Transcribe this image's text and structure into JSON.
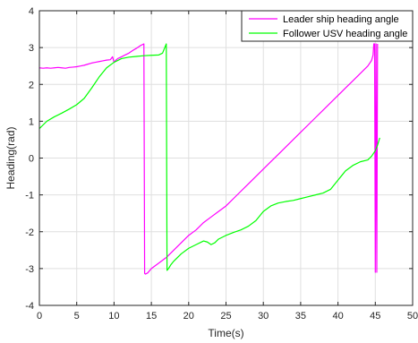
{
  "chart_data": {
    "type": "line",
    "title": "",
    "xlabel": "Time(s)",
    "ylabel": "Heading(rad)",
    "xlim": [
      0,
      50
    ],
    "ylim": [
      -4,
      4
    ],
    "xticks": [
      0,
      5,
      10,
      15,
      20,
      25,
      30,
      35,
      40,
      45,
      50
    ],
    "yticks": [
      -4,
      -3,
      -2,
      -1,
      0,
      1,
      2,
      3,
      4
    ],
    "grid": true,
    "legend_position": "top-right",
    "series": [
      {
        "name": "Leader ship heading angle",
        "color": "#ff00ff",
        "x": [
          0,
          0.5,
          1,
          1.5,
          2,
          2.5,
          3,
          3.5,
          4,
          4.5,
          5,
          5.5,
          6,
          6.5,
          7,
          7.5,
          8,
          8.5,
          9,
          9.5,
          9.8,
          10.0,
          10.2,
          10.5,
          11,
          11.5,
          12,
          12.5,
          13,
          13.5,
          14.0,
          14.1,
          14.2,
          14.5,
          15,
          16,
          17,
          18,
          19,
          20,
          21,
          22,
          23,
          24,
          25,
          26,
          27,
          28,
          29,
          30,
          31,
          32,
          33,
          34,
          35,
          36,
          37,
          38,
          39,
          40,
          41,
          42,
          43,
          44,
          44.5,
          44.7,
          44.8,
          44.9,
          45.0,
          45.1,
          45.2,
          45.3
        ],
        "y": [
          2.45,
          2.44,
          2.45,
          2.44,
          2.45,
          2.46,
          2.45,
          2.44,
          2.46,
          2.47,
          2.48,
          2.5,
          2.52,
          2.55,
          2.58,
          2.6,
          2.62,
          2.64,
          2.66,
          2.67,
          2.75,
          2.6,
          2.65,
          2.7,
          2.75,
          2.8,
          2.85,
          2.92,
          2.98,
          3.05,
          3.1,
          -3.13,
          -3.15,
          -3.12,
          -3.0,
          -2.85,
          -2.7,
          -2.5,
          -2.3,
          -2.1,
          -1.95,
          -1.75,
          -1.6,
          -1.45,
          -1.3,
          -1.1,
          -0.9,
          -0.7,
          -0.5,
          -0.3,
          -0.1,
          0.1,
          0.3,
          0.5,
          0.7,
          0.9,
          1.1,
          1.3,
          1.5,
          1.7,
          1.9,
          2.1,
          2.3,
          2.5,
          2.65,
          2.8,
          3.1,
          3.1,
          -3.1,
          3.1,
          -3.1,
          3.1
        ]
      },
      {
        "name": "Follower USV heading angle",
        "color": "#00ff00",
        "x": [
          0,
          0.5,
          1,
          2,
          3,
          4,
          5,
          6,
          7,
          8,
          9,
          10,
          11,
          12,
          13,
          14,
          15,
          16,
          16.5,
          17.0,
          17.1,
          17.3,
          17.6,
          18,
          19,
          20,
          21,
          22,
          22.5,
          23,
          23.5,
          24,
          25,
          26,
          27,
          28,
          29,
          30,
          31,
          32,
          33,
          34,
          35,
          36,
          37,
          38,
          39,
          40,
          41,
          42,
          43,
          44,
          44.5,
          45,
          45.3,
          45.6
        ],
        "y": [
          0.8,
          0.9,
          1.0,
          1.12,
          1.22,
          1.33,
          1.45,
          1.62,
          1.9,
          2.2,
          2.45,
          2.6,
          2.7,
          2.74,
          2.76,
          2.78,
          2.79,
          2.8,
          2.85,
          3.1,
          -3.05,
          -3.0,
          -2.9,
          -2.8,
          -2.6,
          -2.45,
          -2.35,
          -2.25,
          -2.28,
          -2.35,
          -2.3,
          -2.2,
          -2.1,
          -2.02,
          -1.95,
          -1.85,
          -1.7,
          -1.45,
          -1.3,
          -1.22,
          -1.18,
          -1.15,
          -1.1,
          -1.05,
          -1.0,
          -0.95,
          -0.85,
          -0.6,
          -0.35,
          -0.2,
          -0.1,
          -0.05,
          0.05,
          0.2,
          0.35,
          0.55
        ]
      }
    ]
  }
}
